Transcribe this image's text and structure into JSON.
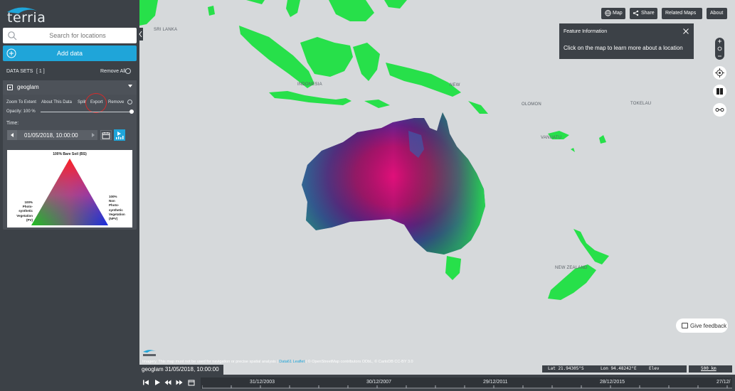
{
  "app": {
    "logo_text": "terria"
  },
  "sidebar": {
    "search_placeholder": "Search for locations",
    "add_data_label": "Add data",
    "datasets_title": "DATA SETS",
    "datasets_count": "[ 1 ]",
    "remove_all_label": "Remove All"
  },
  "dataset": {
    "title": "geoglam",
    "actions": [
      "Zoom To Extent",
      "About This Data",
      "Split",
      "Export",
      "Remove"
    ],
    "opacity_label": "Opacity: 100 %",
    "opacity": 1.0,
    "time_label": "Time:",
    "time_value": "01/05/2018, 10:00:00",
    "legend": {
      "top": "100% Bare Soil (BS)",
      "left": [
        "100%",
        "Photo-",
        "synthetic",
        "Vegetation",
        "(PV)"
      ],
      "right": [
        "100%",
        "Non",
        "Photo-",
        "synthetic",
        "Vegetation",
        "(NPV)"
      ]
    }
  },
  "toolbar": {
    "map_label": "Map",
    "share_label": "Share",
    "related_maps_label": "Related Maps",
    "about_label": "About"
  },
  "feature_info": {
    "title": "Feature Information",
    "body": "Click on the map to learn more about a location"
  },
  "map_labels": {
    "indonesia": "INDONESIA",
    "solomon": "OLOMON",
    "tokelau": "TOKELAU",
    "vanuatu": "VANUATU",
    "new_zealand": "NEW ZEALAND",
    "sri_lanka": "SRI LANKA",
    "new": "NEW"
  },
  "feedback_label": "Give feedback",
  "credits": {
    "text": "Imagery. This map must not be used for navigation or precise spatial analysis |",
    "data61": "Data61",
    "leaflet": "Leaflet",
    "rest": "| © OpenStreetMap contributors ODbL, © CartoDB CC-BY 3.0"
  },
  "coords": {
    "lat": "Lat  21.94305°S",
    "lon": "Lon  94.48242°E",
    "elev": "Elev"
  },
  "scale": "500 km",
  "timeline": {
    "current": "geoglam 31/05/2018, 10:00:00",
    "dates": [
      "31/12/2003",
      "30/12/2007",
      "29/12/2011",
      "28/12/2015",
      "27/12/"
    ]
  },
  "colors": {
    "accent": "#1fa5d9",
    "panel": "#3c4147",
    "map_bg": "#d6d9db",
    "vegetation": "#27e04a"
  }
}
